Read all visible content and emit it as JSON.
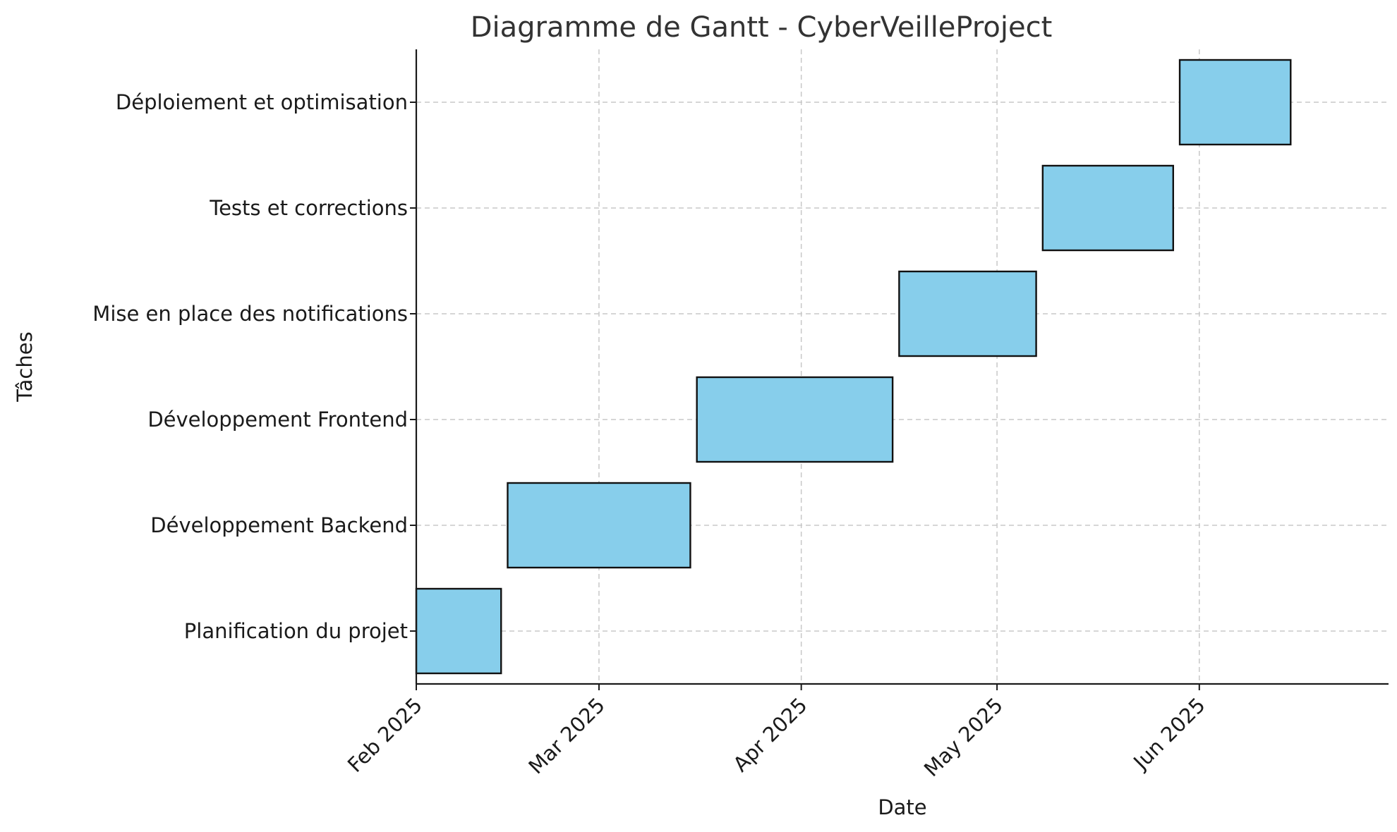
{
  "chart_data": {
    "type": "bar",
    "orientation": "horizontal",
    "title": "Diagramme de Gantt - CyberVeilleProject",
    "xlabel": "Date",
    "ylabel": "Tâches",
    "x_axis_type": "date",
    "xlim": [
      "2025-02-01",
      "2025-06-30"
    ],
    "x_ticks": [
      {
        "date": "2025-02-01",
        "label": "Feb 2025"
      },
      {
        "date": "2025-03-01",
        "label": "Mar 2025"
      },
      {
        "date": "2025-04-01",
        "label": "Apr 2025"
      },
      {
        "date": "2025-05-01",
        "label": "May 2025"
      },
      {
        "date": "2025-06-01",
        "label": "Jun 2025"
      }
    ],
    "tasks": [
      {
        "name": "Planification du projet",
        "start": "2025-02-01",
        "end": "2025-02-14"
      },
      {
        "name": "Développement Backend",
        "start": "2025-02-15",
        "end": "2025-03-15"
      },
      {
        "name": "Développement Frontend",
        "start": "2025-03-16",
        "end": "2025-04-15"
      },
      {
        "name": "Mise en place des notifications",
        "start": "2025-04-16",
        "end": "2025-05-07"
      },
      {
        "name": "Tests et corrections",
        "start": "2025-05-08",
        "end": "2025-05-28"
      },
      {
        "name": "Déploiement et optimisation",
        "start": "2025-05-29",
        "end": "2025-06-15"
      }
    ],
    "grid": true,
    "colors": {
      "bar_fill": "#87CEEB",
      "bar_edge": "#111111"
    }
  }
}
